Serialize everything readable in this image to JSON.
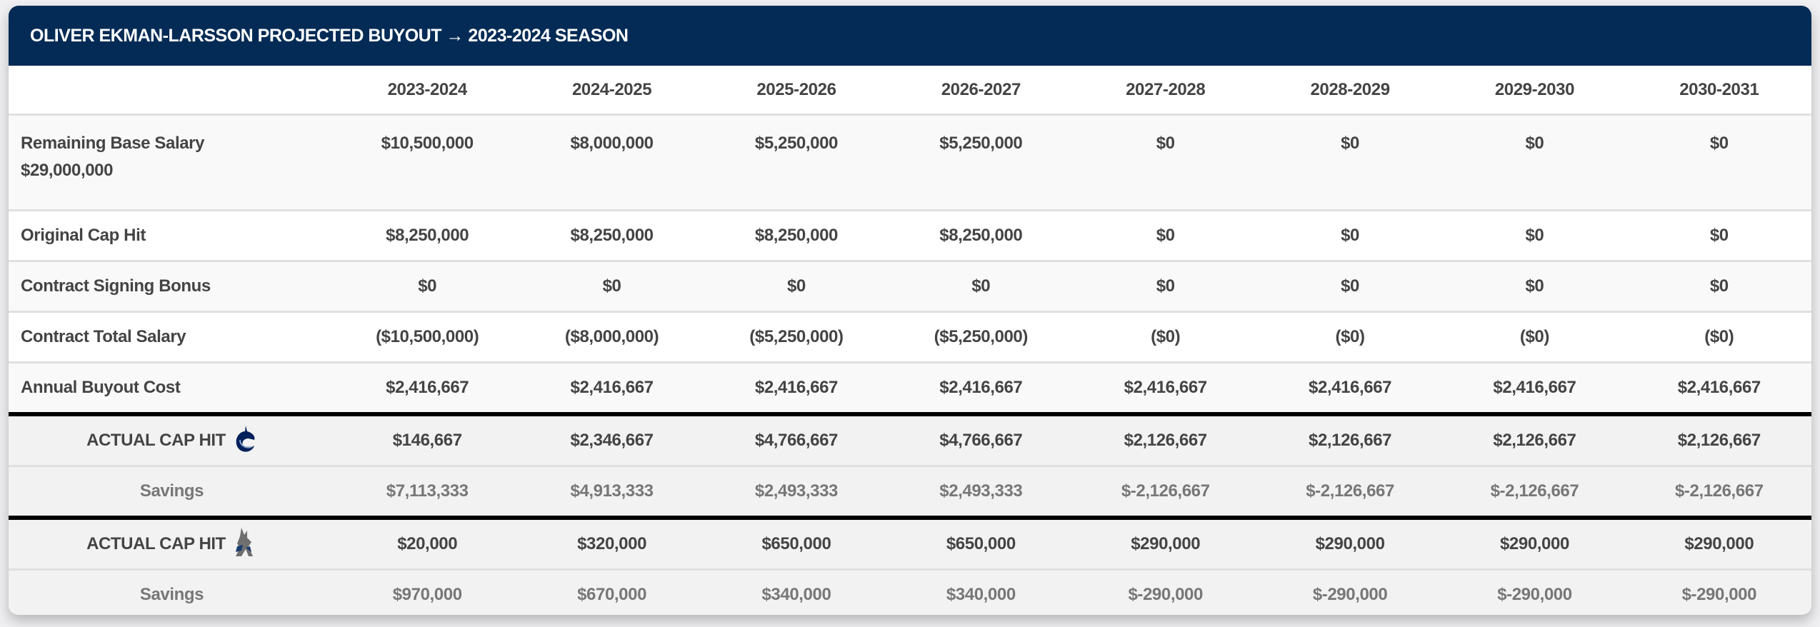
{
  "title": "OLIVER EKMAN-LARSSON PROJECTED BUYOUT → 2023-2024 SEASON",
  "seasons": [
    "2023-2024",
    "2024-2025",
    "2025-2026",
    "2026-2027",
    "2027-2028",
    "2028-2029",
    "2029-2030",
    "2030-2031"
  ],
  "rows": {
    "remaining_base": {
      "label": "Remaining Base Salary",
      "sublabel": "$29,000,000",
      "values": [
        "$10,500,000",
        "$8,000,000",
        "$5,250,000",
        "$5,250,000",
        "$0",
        "$0",
        "$0",
        "$0"
      ]
    },
    "original_cap": {
      "label": "Original Cap Hit",
      "values": [
        "$8,250,000",
        "$8,250,000",
        "$8,250,000",
        "$8,250,000",
        "$0",
        "$0",
        "$0",
        "$0"
      ]
    },
    "signing_bonus": {
      "label": "Contract Signing Bonus",
      "values": [
        "$0",
        "$0",
        "$0",
        "$0",
        "$0",
        "$0",
        "$0",
        "$0"
      ]
    },
    "total_salary": {
      "label": "Contract Total Salary",
      "values": [
        "($10,500,000)",
        "($8,000,000)",
        "($5,250,000)",
        "($5,250,000)",
        "($0)",
        "($0)",
        "($0)",
        "($0)"
      ]
    },
    "annual_buyout": {
      "label": "Annual Buyout Cost",
      "values": [
        "$2,416,667",
        "$2,416,667",
        "$2,416,667",
        "$2,416,667",
        "$2,416,667",
        "$2,416,667",
        "$2,416,667",
        "$2,416,667"
      ]
    }
  },
  "teams": [
    {
      "logo": "canucks-logo",
      "actual_label": "ACTUAL CAP HIT",
      "actual": [
        "$146,667",
        "$2,346,667",
        "$4,766,667",
        "$4,766,667",
        "$2,126,667",
        "$2,126,667",
        "$2,126,667",
        "$2,126,667"
      ],
      "savings_label": "Savings",
      "savings": [
        "$7,113,333",
        "$4,913,333",
        "$2,493,333",
        "$2,493,333",
        "$-2,126,667",
        "$-2,126,667",
        "$-2,126,667",
        "$-2,126,667"
      ]
    },
    {
      "logo": "coyotes-logo",
      "actual_label": "ACTUAL CAP HIT",
      "actual": [
        "$20,000",
        "$320,000",
        "$650,000",
        "$650,000",
        "$290,000",
        "$290,000",
        "$290,000",
        "$290,000"
      ],
      "savings_label": "Savings",
      "savings": [
        "$970,000",
        "$670,000",
        "$340,000",
        "$340,000",
        "$-290,000",
        "$-290,000",
        "$-290,000",
        "$-290,000"
      ]
    }
  ],
  "colors": {
    "header_bg": "#032b55",
    "text": "#444444",
    "savings_text": "#777777"
  }
}
